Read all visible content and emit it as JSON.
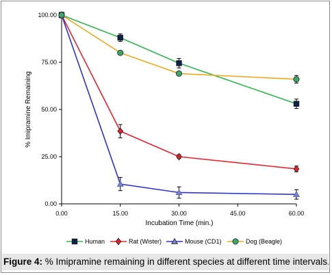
{
  "chart_data": {
    "type": "line",
    "title": "",
    "xlabel": "Incubation Time  (min.)",
    "ylabel": "% Imipramine Remaining",
    "x": [
      0,
      15,
      30,
      60
    ],
    "xlim": [
      0,
      60
    ],
    "ylim": [
      0,
      100
    ],
    "xticks": [
      "0.00",
      "15.00",
      "30.00",
      "45.00",
      "60.00"
    ],
    "xtick_values": [
      0,
      15,
      30,
      45,
      60
    ],
    "yticks": [
      "0.00",
      "25.00",
      "50.00",
      "75.00",
      "100.00"
    ],
    "ytick_values": [
      0,
      25,
      50,
      75,
      100
    ],
    "grid": false,
    "legend_position": "bottom",
    "series": [
      {
        "name": "Human",
        "color": "#2db84a",
        "marker": "square",
        "marker_color": "#0d1f4a",
        "values": [
          100,
          88,
          74.5,
          53
        ],
        "errors": [
          1.5,
          2,
          2.5,
          2.5
        ]
      },
      {
        "name": "Rat (Wister)",
        "color": "#e8202a",
        "marker": "diamond",
        "marker_color": "#e8202a",
        "values": [
          100,
          38.5,
          25,
          18.5
        ],
        "errors": [
          1,
          3.5,
          1,
          1.5
        ]
      },
      {
        "name": "Mouse (CD1)",
        "color": "#2b2fd6",
        "marker": "triangle",
        "marker_color": "#7b86c9",
        "values": [
          100,
          10.5,
          6,
          5
        ],
        "errors": [
          1,
          3.5,
          3,
          2.5
        ]
      },
      {
        "name": "Dog (Beagle)",
        "color": "#f0a81a",
        "marker": "circle",
        "marker_color": "#3aa86a",
        "values": [
          100,
          80,
          69,
          66
        ],
        "errors": [
          1,
          1,
          1,
          2
        ]
      }
    ]
  },
  "caption": {
    "label": "Figure 4:",
    "text": " % Imipramine remaining in different species at different time intervals."
  }
}
